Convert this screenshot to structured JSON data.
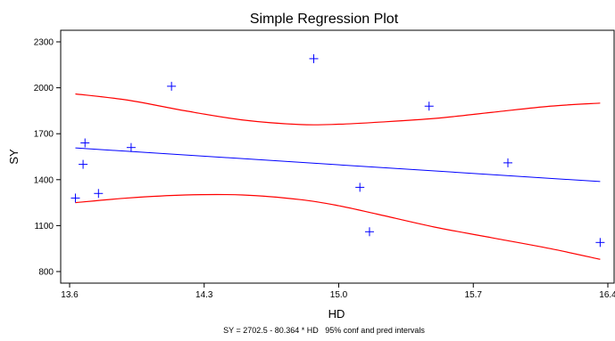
{
  "chart_data": {
    "type": "scatter",
    "title": "Simple Regression Plot",
    "xlabel": "HD",
    "ylabel": "SY",
    "caption": "SY = 2702.5 - 80.364 * HD   95% conf and pred intervals",
    "xlim": [
      13.6,
      16.4
    ],
    "ylim": [
      800,
      2300
    ],
    "x_ticks": [
      13.6,
      14.3,
      15.0,
      15.7,
      16.4
    ],
    "x_tick_labels": [
      "13.6",
      "14.3",
      "15.0",
      "15.7",
      "16.4"
    ],
    "y_ticks": [
      800,
      1100,
      1400,
      1700,
      2000,
      2300
    ],
    "y_tick_labels": [
      "800",
      "1100",
      "1400",
      "1700",
      "2000",
      "2300"
    ],
    "points": [
      {
        "x": 13.63,
        "y": 1280
      },
      {
        "x": 13.67,
        "y": 1500
      },
      {
        "x": 13.68,
        "y": 1640
      },
      {
        "x": 13.75,
        "y": 1310
      },
      {
        "x": 13.92,
        "y": 1610
      },
      {
        "x": 14.13,
        "y": 2010
      },
      {
        "x": 14.87,
        "y": 2190
      },
      {
        "x": 15.11,
        "y": 1350
      },
      {
        "x": 15.16,
        "y": 1060
      },
      {
        "x": 15.47,
        "y": 1880
      },
      {
        "x": 15.88,
        "y": 1510
      },
      {
        "x": 16.36,
        "y": 990
      }
    ],
    "regression": {
      "intercept": 2702.5,
      "slope": -80.364,
      "x_range": [
        13.63,
        16.36
      ]
    },
    "upper_interval": {
      "x": [
        13.63,
        13.9,
        14.2,
        14.5,
        14.8,
        15.0,
        15.2,
        15.5,
        15.8,
        16.1,
        16.36
      ],
      "y": [
        1960,
        1920,
        1850,
        1790,
        1760,
        1762,
        1775,
        1800,
        1840,
        1880,
        1900
      ]
    },
    "lower_interval": {
      "x": [
        13.63,
        13.9,
        14.2,
        14.5,
        14.8,
        15.0,
        15.2,
        15.5,
        15.8,
        16.1,
        16.36
      ],
      "y": [
        1250,
        1280,
        1300,
        1300,
        1270,
        1230,
        1175,
        1090,
        1020,
        950,
        880
      ]
    },
    "colors": {
      "points": "#0000ff",
      "regression": "#0000ff",
      "intervals": "#ff0000",
      "axes": "#000000"
    },
    "grid": false,
    "legend": "none"
  }
}
